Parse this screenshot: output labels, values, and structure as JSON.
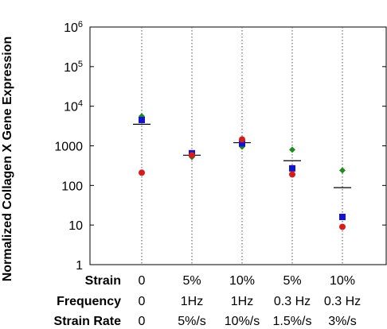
{
  "chart_data": {
    "type": "scatter",
    "ylabel": "Normalized Collagen X Gene Expression",
    "yscale": "log",
    "ylim": [
      1,
      1000000
    ],
    "grid": "vertical dotted lines at each condition",
    "y_ticks": [
      {
        "value": 1,
        "base": "1",
        "exp": ""
      },
      {
        "value": 10,
        "base": "10",
        "exp": ""
      },
      {
        "value": 100,
        "base": "100",
        "exp": ""
      },
      {
        "value": 1000,
        "base": "1000",
        "exp": ""
      },
      {
        "value": 10000,
        "base": "10",
        "exp": "4"
      },
      {
        "value": 100000,
        "base": "10",
        "exp": "5"
      },
      {
        "value": 1000000,
        "base": "10",
        "exp": "6"
      }
    ],
    "row_labels": {
      "strain": "Strain",
      "frequency": "Frequency",
      "strain_rate": "Strain Rate"
    },
    "conditions": [
      {
        "strain": "0",
        "frequency": "0",
        "strain_rate": "0"
      },
      {
        "strain": "5%",
        "frequency": "1Hz",
        "strain_rate": "5%/s"
      },
      {
        "strain": "10%",
        "frequency": "1Hz",
        "strain_rate": "10%/s"
      },
      {
        "strain": "5%",
        "frequency": "0.3 Hz",
        "strain_rate": "1.5%/s"
      },
      {
        "strain": "10%",
        "frequency": "0.3 Hz",
        "strain_rate": "3%/s"
      }
    ],
    "series": [
      {
        "marker": "diamond",
        "color": "#1e8c1e",
        "values": [
          5600,
          520,
          950,
          800,
          240
        ]
      },
      {
        "marker": "square",
        "color": "#1414c8",
        "values": [
          4500,
          650,
          1150,
          270,
          16
        ]
      },
      {
        "marker": "circle",
        "color": "#d21e1e",
        "values": [
          210,
          580,
          1450,
          190,
          9
        ]
      }
    ],
    "means": [
      3500,
      580,
      1200,
      420,
      88
    ],
    "mean_color": "#000000"
  }
}
